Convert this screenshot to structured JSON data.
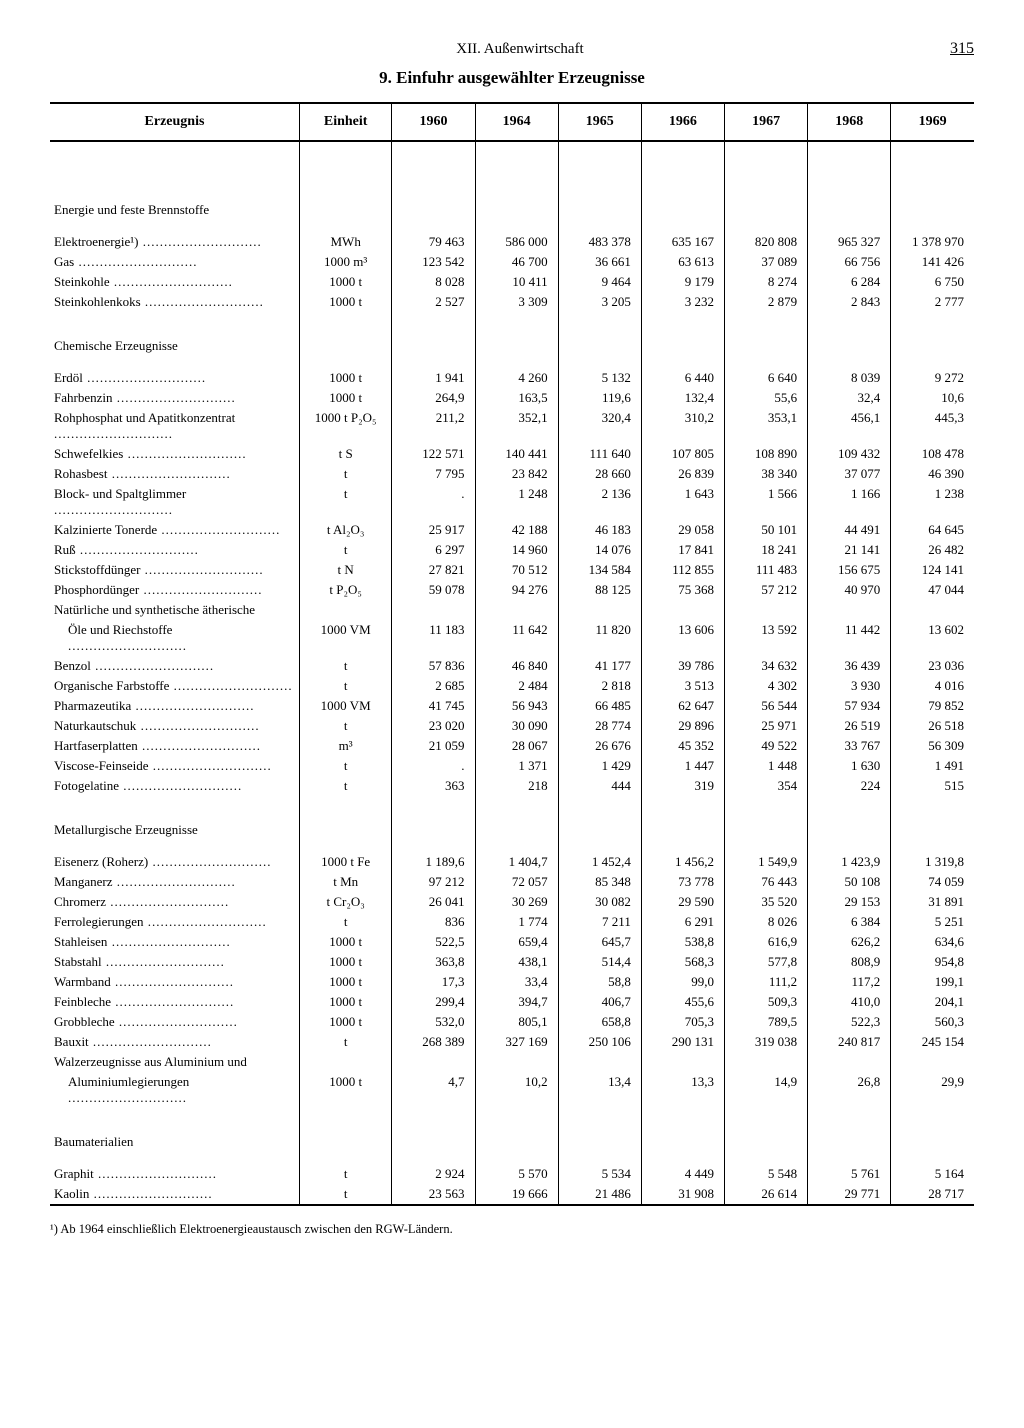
{
  "page": {
    "section": "XII. Außenwirtschaft",
    "number": "315",
    "title": "9. Einfuhr ausgewählter Erzeugnisse",
    "footnote": "¹) Ab 1964 einschließlich Elektroenergieaustausch zwischen den RGW-Ländern."
  },
  "columns": {
    "label": "Erzeugnis",
    "unit": "Einheit",
    "years": [
      "1960",
      "1964",
      "1965",
      "1966",
      "1967",
      "1968",
      "1969"
    ]
  },
  "groups": [
    {
      "name": "Energie und feste Brennstoffe",
      "rows": [
        {
          "label": "Elektroenergie¹)",
          "unit": "MWh",
          "v": [
            "79 463",
            "586 000",
            "483 378",
            "635 167",
            "820 808",
            "965 327",
            "1 378 970"
          ]
        },
        {
          "label": "Gas",
          "unit": "1000 m³",
          "v": [
            "123 542",
            "46 700",
            "36 661",
            "63 613",
            "37 089",
            "66 756",
            "141 426"
          ]
        },
        {
          "label": "Steinkohle",
          "unit": "1000 t",
          "v": [
            "8 028",
            "10 411",
            "9 464",
            "9 179",
            "8 274",
            "6 284",
            "6 750"
          ]
        },
        {
          "label": "Steinkohlenkoks",
          "unit": "1000 t",
          "v": [
            "2 527",
            "3 309",
            "3 205",
            "3 232",
            "2 879",
            "2 843",
            "2 777"
          ]
        }
      ]
    },
    {
      "name": "Chemische Erzeugnisse",
      "rows": [
        {
          "label": "Erdöl",
          "unit": "1000 t",
          "v": [
            "1 941",
            "4 260",
            "5 132",
            "6 440",
            "6 640",
            "8 039",
            "9 272"
          ]
        },
        {
          "label": "Fahrbenzin",
          "unit": "1000 t",
          "v": [
            "264,9",
            "163,5",
            "119,6",
            "132,4",
            "55,6",
            "32,4",
            "10,6"
          ]
        },
        {
          "label": "Rohphosphat und Apatitkonzentrat",
          "unit": "1000 t P₂O₅",
          "v": [
            "211,2",
            "352,1",
            "320,4",
            "310,2",
            "353,1",
            "456,1",
            "445,3"
          ]
        },
        {
          "label": "Schwefelkies",
          "unit": "t S",
          "v": [
            "122 571",
            "140 441",
            "111 640",
            "107 805",
            "108 890",
            "109 432",
            "108 478"
          ]
        },
        {
          "label": "Rohasbest",
          "unit": "t",
          "v": [
            "7 795",
            "23 842",
            "28 660",
            "26 839",
            "38 340",
            "37 077",
            "46 390"
          ]
        },
        {
          "label": "Block- und Spaltglimmer",
          "unit": "t",
          "v": [
            ".",
            "1 248",
            "2 136",
            "1 643",
            "1 566",
            "1 166",
            "1 238"
          ]
        },
        {
          "label": "Kalzinierte Tonerde",
          "unit": "t Al₂O₃",
          "v": [
            "25 917",
            "42 188",
            "46 183",
            "29 058",
            "50 101",
            "44 491",
            "64 645"
          ]
        },
        {
          "label": "Ruß",
          "unit": "t",
          "v": [
            "6 297",
            "14 960",
            "14 076",
            "17 841",
            "18 241",
            "21 141",
            "26 482"
          ]
        },
        {
          "label": "Stickstoffdünger",
          "unit": "t N",
          "v": [
            "27 821",
            "70 512",
            "134 584",
            "112 855",
            "111 483",
            "156 675",
            "124 141"
          ]
        },
        {
          "label": "Phosphordünger",
          "unit": "t P₂O₅",
          "v": [
            "59 078",
            "94 276",
            "88 125",
            "75 368",
            "57 212",
            "40 970",
            "47 044"
          ]
        },
        {
          "label": "Natürliche und synthetische ätherische",
          "nodots": true,
          "unit": "",
          "v": [
            "",
            "",
            "",
            "",
            "",
            "",
            ""
          ]
        },
        {
          "label": "Öle und Riechstoffe",
          "indent": true,
          "unit": "1000 VM",
          "v": [
            "11 183",
            "11 642",
            "11 820",
            "13 606",
            "13 592",
            "11 442",
            "13 602"
          ]
        },
        {
          "label": "Benzol",
          "unit": "t",
          "v": [
            "57 836",
            "46 840",
            "41 177",
            "39 786",
            "34 632",
            "36 439",
            "23 036"
          ]
        },
        {
          "label": "Organische Farbstoffe",
          "unit": "t",
          "v": [
            "2 685",
            "2 484",
            "2 818",
            "3 513",
            "4 302",
            "3 930",
            "4 016"
          ]
        },
        {
          "label": "Pharmazeutika",
          "unit": "1000 VM",
          "v": [
            "41 745",
            "56 943",
            "66 485",
            "62 647",
            "56 544",
            "57 934",
            "79 852"
          ]
        },
        {
          "label": "Naturkautschuk",
          "unit": "t",
          "v": [
            "23 020",
            "30 090",
            "28 774",
            "29 896",
            "25 971",
            "26 519",
            "26 518"
          ]
        },
        {
          "label": "Hartfaserplatten",
          "unit": "m³",
          "v": [
            "21 059",
            "28 067",
            "26 676",
            "45 352",
            "49 522",
            "33 767",
            "56 309"
          ]
        },
        {
          "label": "Viscose-Feinseide",
          "unit": "t",
          "v": [
            ".",
            "1 371",
            "1 429",
            "1 447",
            "1 448",
            "1 630",
            "1 491"
          ]
        },
        {
          "label": "Fotogelatine",
          "unit": "t",
          "v": [
            "363",
            "218",
            "444",
            "319",
            "354",
            "224",
            "515"
          ]
        }
      ]
    },
    {
      "name": "Metallurgische Erzeugnisse",
      "rows": [
        {
          "label": "Eisenerz (Roherz)",
          "unit": "1000 t Fe",
          "v": [
            "1 189,6",
            "1 404,7",
            "1 452,4",
            "1 456,2",
            "1 549,9",
            "1 423,9",
            "1 319,8"
          ]
        },
        {
          "label": "Manganerz",
          "unit": "t Mn",
          "v": [
            "97 212",
            "72 057",
            "85 348",
            "73 778",
            "76 443",
            "50 108",
            "74 059"
          ]
        },
        {
          "label": "Chromerz",
          "unit": "t Cr₂O₃",
          "v": [
            "26 041",
            "30 269",
            "30 082",
            "29 590",
            "35 520",
            "29 153",
            "31 891"
          ]
        },
        {
          "label": "Ferrolegierungen",
          "unit": "t",
          "v": [
            "836",
            "1 774",
            "7 211",
            "6 291",
            "8 026",
            "6 384",
            "5 251"
          ]
        },
        {
          "label": "Stahleisen",
          "unit": "1000 t",
          "v": [
            "522,5",
            "659,4",
            "645,7",
            "538,8",
            "616,9",
            "626,2",
            "634,6"
          ]
        },
        {
          "label": "Stabstahl",
          "unit": "1000 t",
          "v": [
            "363,8",
            "438,1",
            "514,4",
            "568,3",
            "577,8",
            "808,9",
            "954,8"
          ]
        },
        {
          "label": "Warmband",
          "unit": "1000 t",
          "v": [
            "17,3",
            "33,4",
            "58,8",
            "99,0",
            "111,2",
            "117,2",
            "199,1"
          ]
        },
        {
          "label": "Feinbleche",
          "unit": "1000 t",
          "v": [
            "299,4",
            "394,7",
            "406,7",
            "455,6",
            "509,3",
            "410,0",
            "204,1"
          ]
        },
        {
          "label": "Grobbleche",
          "unit": "1000 t",
          "v": [
            "532,0",
            "805,1",
            "658,8",
            "705,3",
            "789,5",
            "522,3",
            "560,3"
          ]
        },
        {
          "label": "Bauxit",
          "unit": "t",
          "v": [
            "268 389",
            "327 169",
            "250 106",
            "290 131",
            "319 038",
            "240 817",
            "245 154"
          ]
        },
        {
          "label": "Walzerzeugnisse aus Aluminium und",
          "nodots": true,
          "unit": "",
          "v": [
            "",
            "",
            "",
            "",
            "",
            "",
            ""
          ]
        },
        {
          "label": "Aluminiumlegierungen",
          "indent": true,
          "unit": "1000 t",
          "v": [
            "4,7",
            "10,2",
            "13,4",
            "13,3",
            "14,9",
            "26,8",
            "29,9"
          ]
        }
      ]
    },
    {
      "name": "Baumaterialien",
      "rows": [
        {
          "label": "Graphit",
          "unit": "t",
          "v": [
            "2 924",
            "5 570",
            "5 534",
            "4 449",
            "5 548",
            "5 761",
            "5 164"
          ]
        },
        {
          "label": "Kaolin",
          "unit": "t",
          "v": [
            "23 563",
            "19 666",
            "21 486",
            "31 908",
            "26 614",
            "29 771",
            "28 717"
          ]
        }
      ]
    }
  ]
}
